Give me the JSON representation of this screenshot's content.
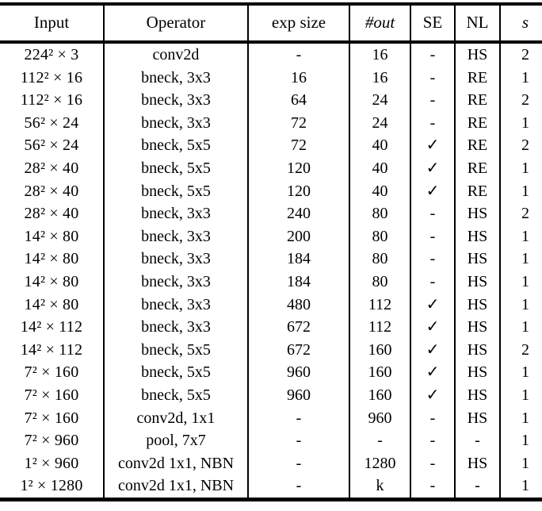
{
  "colors": {
    "text": "#000000",
    "background": "#ffffff",
    "rule": "#000000"
  },
  "table": {
    "headers": [
      "Input",
      "Operator",
      "exp size",
      "#out",
      "SE",
      "NL",
      "s"
    ],
    "checkmark_glyph": "✓",
    "rows": [
      {
        "input": "224² × 3",
        "operator": "conv2d",
        "exp_size": "-",
        "out": "16",
        "se": "-",
        "nl": "HS",
        "s": "2"
      },
      {
        "input": "112² × 16",
        "operator": "bneck, 3x3",
        "exp_size": "16",
        "out": "16",
        "se": "-",
        "nl": "RE",
        "s": "1"
      },
      {
        "input": "112² × 16",
        "operator": "bneck, 3x3",
        "exp_size": "64",
        "out": "24",
        "se": "-",
        "nl": "RE",
        "s": "2"
      },
      {
        "input": "56² × 24",
        "operator": "bneck, 3x3",
        "exp_size": "72",
        "out": "24",
        "se": "-",
        "nl": "RE",
        "s": "1"
      },
      {
        "input": "56² × 24",
        "operator": "bneck, 5x5",
        "exp_size": "72",
        "out": "40",
        "se": "✓",
        "nl": "RE",
        "s": "2"
      },
      {
        "input": "28² × 40",
        "operator": "bneck, 5x5",
        "exp_size": "120",
        "out": "40",
        "se": "✓",
        "nl": "RE",
        "s": "1"
      },
      {
        "input": "28² × 40",
        "operator": "bneck, 5x5",
        "exp_size": "120",
        "out": "40",
        "se": "✓",
        "nl": "RE",
        "s": "1"
      },
      {
        "input": "28² × 40",
        "operator": "bneck, 3x3",
        "exp_size": "240",
        "out": "80",
        "se": "-",
        "nl": "HS",
        "s": "2"
      },
      {
        "input": "14² × 80",
        "operator": "bneck, 3x3",
        "exp_size": "200",
        "out": "80",
        "se": "-",
        "nl": "HS",
        "s": "1"
      },
      {
        "input": "14² × 80",
        "operator": "bneck, 3x3",
        "exp_size": "184",
        "out": "80",
        "se": "-",
        "nl": "HS",
        "s": "1"
      },
      {
        "input": "14² × 80",
        "operator": "bneck, 3x3",
        "exp_size": "184",
        "out": "80",
        "se": "-",
        "nl": "HS",
        "s": "1"
      },
      {
        "input": "14² × 80",
        "operator": "bneck, 3x3",
        "exp_size": "480",
        "out": "112",
        "se": "✓",
        "nl": "HS",
        "s": "1"
      },
      {
        "input": "14² × 112",
        "operator": "bneck, 3x3",
        "exp_size": "672",
        "out": "112",
        "se": "✓",
        "nl": "HS",
        "s": "1"
      },
      {
        "input": "14² × 112",
        "operator": "bneck, 5x5",
        "exp_size": "672",
        "out": "160",
        "se": "✓",
        "nl": "HS",
        "s": "2"
      },
      {
        "input": "7² × 160",
        "operator": "bneck, 5x5",
        "exp_size": "960",
        "out": "160",
        "se": "✓",
        "nl": "HS",
        "s": "1"
      },
      {
        "input": "7² × 160",
        "operator": "bneck, 5x5",
        "exp_size": "960",
        "out": "160",
        "se": "✓",
        "nl": "HS",
        "s": "1"
      },
      {
        "input": "7² × 160",
        "operator": "conv2d, 1x1",
        "exp_size": "-",
        "out": "960",
        "se": "-",
        "nl": "HS",
        "s": "1"
      },
      {
        "input": "7² × 960",
        "operator": "pool, 7x7",
        "exp_size": "-",
        "out": "-",
        "se": "-",
        "nl": "-",
        "s": "1"
      },
      {
        "input": "1² × 960",
        "operator": "conv2d 1x1, NBN",
        "exp_size": "-",
        "out": "1280",
        "se": "-",
        "nl": "HS",
        "s": "1"
      },
      {
        "input": "1² × 1280",
        "operator": "conv2d 1x1, NBN",
        "exp_size": "-",
        "out": "k",
        "se": "-",
        "nl": "-",
        "s": "1"
      }
    ]
  }
}
